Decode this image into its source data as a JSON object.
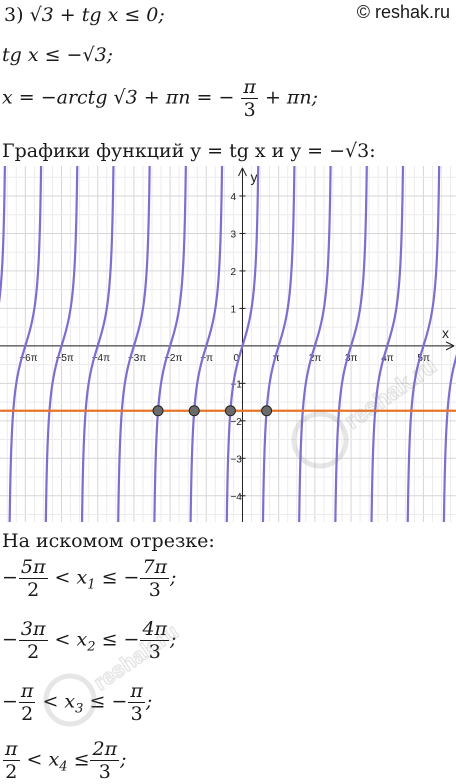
{
  "site_badge": "© reshak.ru",
  "header": {
    "item_number": "3)",
    "inequality": "√3 + tg x ≤ 0;"
  },
  "steps": {
    "step1": "tg x ≤ −√3;",
    "step2_left": "x = −arctg √3 + πn = −",
    "step2_frac_num": "π",
    "step2_frac_den": "3",
    "step2_right": "+ πn;"
  },
  "graph_caption": "Графики функций y = tg x и y = −√3:",
  "chart_data": {
    "type": "line",
    "series": [
      {
        "expr": "y = tg x",
        "color": "#7b6fd0"
      },
      {
        "expr": "y = −√3",
        "value": -1.732,
        "color": "#e8742a"
      }
    ],
    "intersection_points_x_over_pi": [
      -2.3333,
      -1.3333,
      -0.3333,
      0.6667
    ],
    "xlabel": "x",
    "ylabel": "y",
    "x_tick_labels": [
      "−6π",
      "−5π",
      "−4π",
      "−3π",
      "−2π",
      "−π",
      "0",
      "π",
      "2π",
      "3π",
      "4π",
      "5π"
    ],
    "x_tick_values_over_pi": [
      -6,
      -5,
      -4,
      -3,
      -2,
      -1,
      0,
      1,
      2,
      3,
      4,
      5
    ],
    "y_tick_labels": [
      "4",
      "3",
      "2",
      "1",
      "−1",
      "−2",
      "−3",
      "−4"
    ],
    "y_tick_values": [
      4,
      3,
      2,
      1,
      -1,
      -2,
      -3,
      -4
    ],
    "xlim_over_pi": [
      -6.7,
      5.9
    ],
    "ylim": [
      -4.7,
      4.8
    ],
    "grid": true
  },
  "answer_intro": "На искомом отрезке:",
  "answers": [
    {
      "lneg": "−",
      "lnum": "5π",
      "lden": "2",
      "mid": "< x",
      "sub": "1",
      "op": "≤ −",
      "rnum": "7π",
      "rden": "3",
      "end": ";"
    },
    {
      "lneg": "−",
      "lnum": "3π",
      "lden": "2",
      "mid": "< x",
      "sub": "2",
      "op": "≤ −",
      "rnum": "4π",
      "rden": "3",
      "end": ";"
    },
    {
      "lneg": "−",
      "lnum": "π",
      "lden": "2",
      "mid": "< x",
      "sub": "3",
      "op": "≤ −",
      "rnum": "π",
      "rden": "3",
      "end": ";"
    },
    {
      "lneg": "",
      "lnum": "π",
      "lden": "2",
      "mid": "< x",
      "sub": "4",
      "op": "≤",
      "rnum": "2π",
      "rden": "3",
      "end": ";"
    }
  ],
  "watermark_text": "reshak.ru"
}
